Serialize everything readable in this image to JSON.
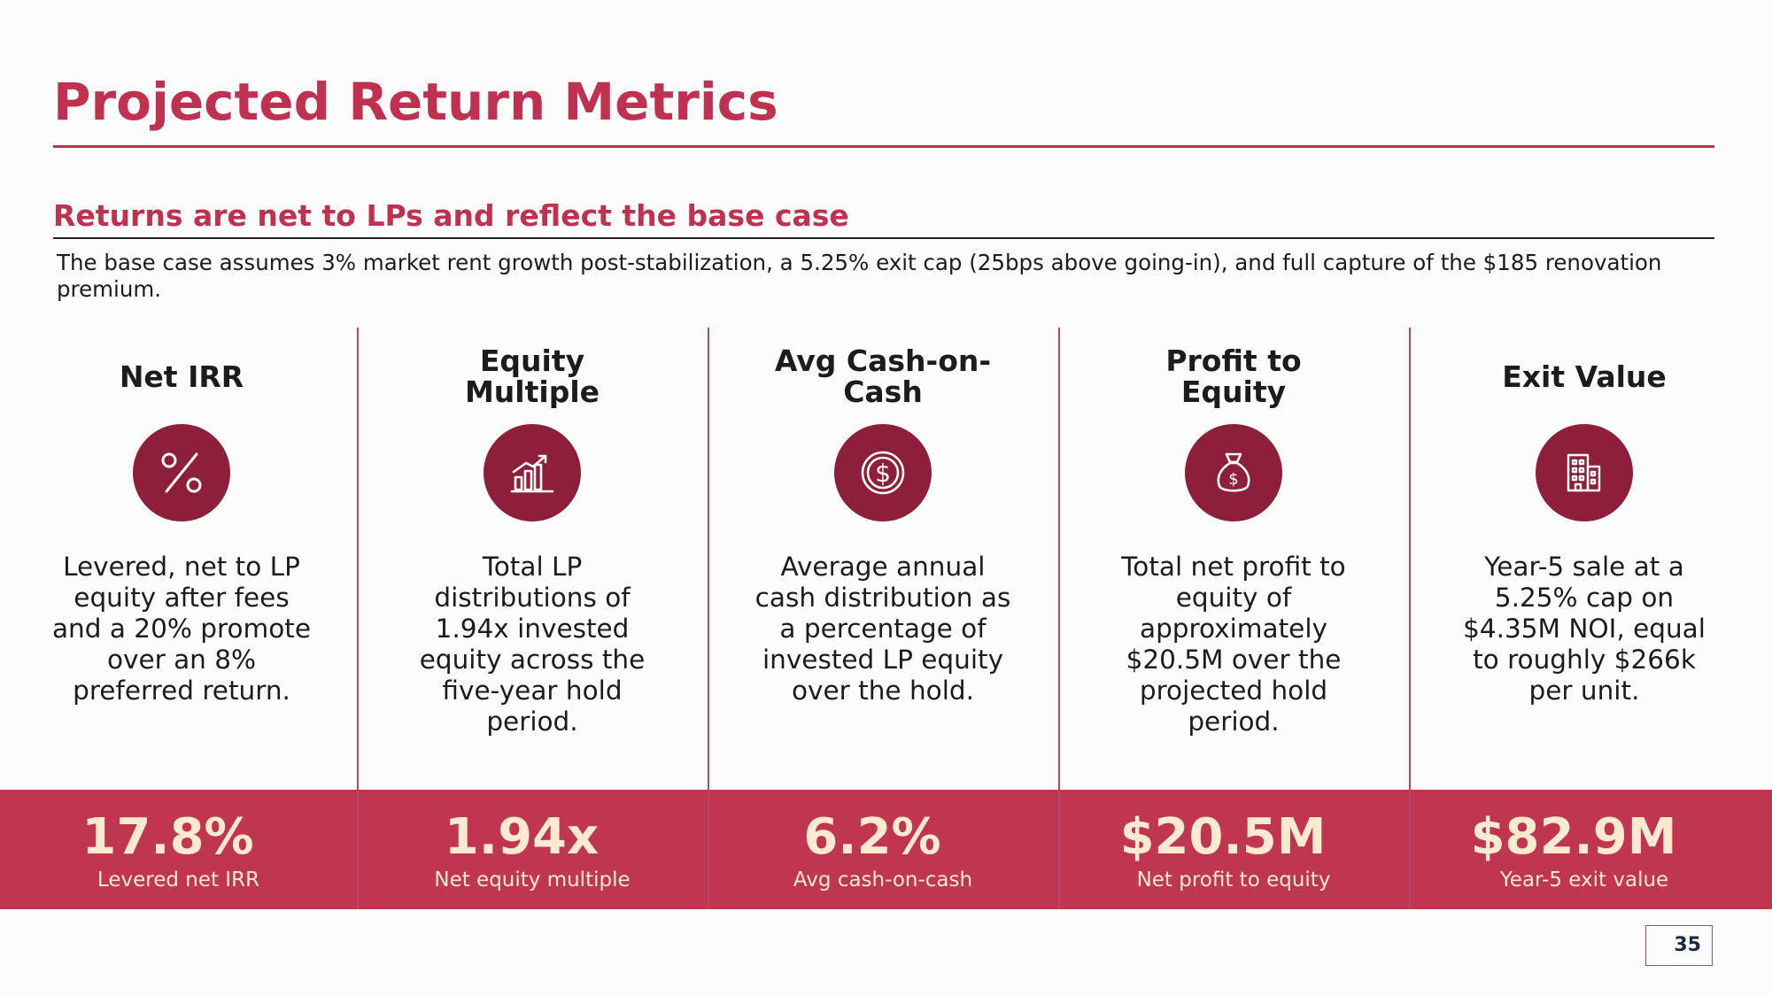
{
  "title": "Projected Return Metrics",
  "subtitle": "Returns are net to LPs and reflect the base case",
  "description": "The base case assumes 3% market rent growth post-stabilization, a 5.25% exit cap (25bps above going-in), and full capture of the $185 renovation premium.",
  "metrics": [
    {
      "title": "Net IRR",
      "icon": "percent-icon",
      "description": "Levered, net to LP equity after fees and a 20% promote over an 8% preferred return.",
      "value": "17.8%",
      "label": "Levered net IRR"
    },
    {
      "title": "Equity Multiple",
      "icon": "growth-chart-icon",
      "description": "Total LP distributions of 1.94x invested equity across the five-year hold period.",
      "value": "1.94x",
      "label": "Net equity multiple"
    },
    {
      "title": "Avg Cash-on-Cash",
      "icon": "dollar-coin-icon",
      "description": "Average annual cash distribution as a percentage of invested LP equity over the hold.",
      "value": "6.2%",
      "label": "Avg cash-on-cash"
    },
    {
      "title": "Profit to Equity",
      "icon": "money-bag-icon",
      "description": "Total net profit to equity of approximately $20.5M over the projected hold period.",
      "value": "$20.5M",
      "label": "Net profit to equity"
    },
    {
      "title": "Exit Value",
      "icon": "building-icon",
      "description": "Year-5 sale at a 5.25% cap on $4.35M NOI, equal to roughly $266k per unit.",
      "value": "$82.9M",
      "label": "Year-5 exit value"
    }
  ],
  "page_number": "35",
  "colors": {
    "accent": "#c0304f",
    "icon_circle": "#8e1f3a",
    "band": "#c0354f",
    "band_text": "#fbe9d0"
  }
}
